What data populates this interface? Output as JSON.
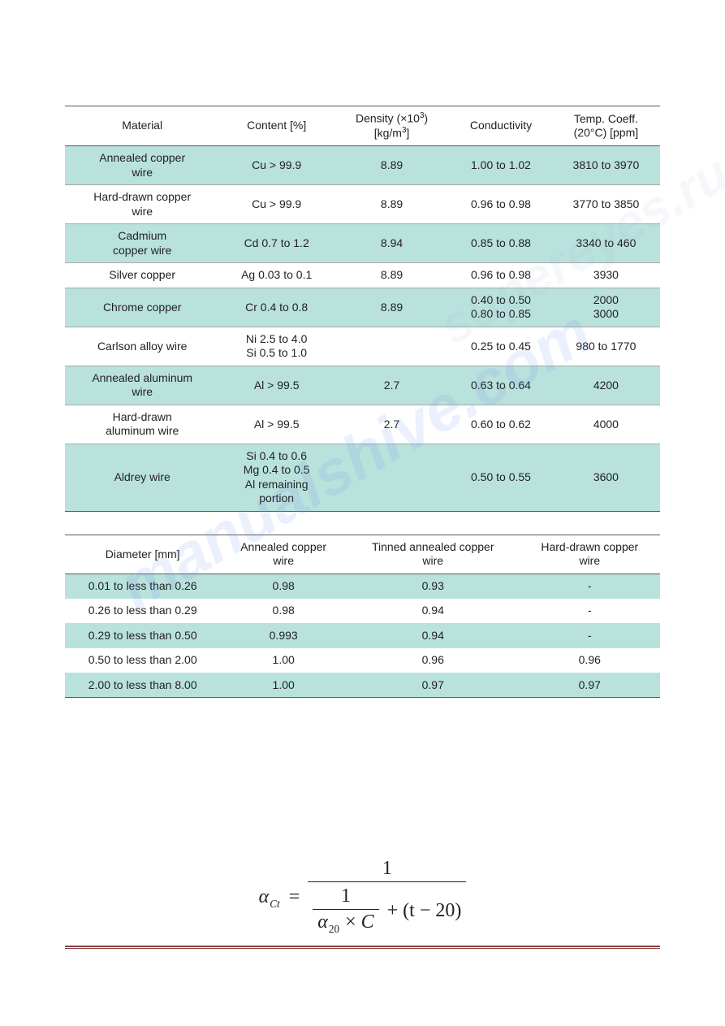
{
  "colors": {
    "stripe_bg": "#b9e2dd",
    "plain_bg": "#ffffff",
    "header_border": "#5a5a5a",
    "row_border": "#a7a8a9",
    "footer_rule": "#7d2b2c",
    "text": "#222222",
    "watermark1": "#6f8ff2",
    "watermark2": "#9fb3d6"
  },
  "typography": {
    "body_font": "Arial",
    "body_size_pt": 10,
    "formula_font": "Times New Roman",
    "formula_size_pt": 18
  },
  "table1": {
    "type": "table",
    "columns": [
      {
        "label": "Material"
      },
      {
        "label": "Content [%]"
      },
      {
        "label_html": "Density (×10<span class='sup'>3</span>)<br>[kg/m<span class='sup'>3</span>]"
      },
      {
        "label": "Conductivity"
      },
      {
        "label_html": "Temp. Coeff.<br>(20°C) [ppm]"
      }
    ],
    "rows": [
      {
        "stripe": true,
        "cells": [
          "Annealed copper\nwire",
          "Cu > 99.9",
          "8.89",
          "1.00 to 1.02",
          "3810 to 3970"
        ]
      },
      {
        "stripe": false,
        "cells": [
          "Hard-drawn copper\nwire",
          "Cu > 99.9",
          "8.89",
          "0.96 to 0.98",
          "3770 to 3850"
        ]
      },
      {
        "stripe": true,
        "cells": [
          "Cadmium\ncopper wire",
          "Cd 0.7 to 1.2",
          "8.94",
          "0.85 to 0.88",
          "3340 to 460"
        ]
      },
      {
        "stripe": false,
        "cells": [
          "Silver copper",
          "Ag 0.03 to 0.1",
          "8.89",
          "0.96 to 0.98",
          "3930"
        ]
      },
      {
        "stripe": true,
        "cells": [
          "Chrome copper",
          "Cr 0.4 to 0.8",
          "8.89",
          "0.40 to 0.50\n0.80 to 0.85",
          "2000\n3000"
        ]
      },
      {
        "stripe": false,
        "cells": [
          "Carlson alloy wire",
          "Ni 2.5 to 4.0\nSi 0.5 to 1.0",
          "",
          "0.25 to 0.45",
          "980 to 1770"
        ]
      },
      {
        "stripe": true,
        "cells": [
          "Annealed aluminum\nwire",
          "Al > 99.5",
          "2.7",
          "0.63 to 0.64",
          "4200"
        ]
      },
      {
        "stripe": false,
        "cells": [
          "Hard-drawn\naluminum wire",
          "Al > 99.5",
          "2.7",
          "0.60 to 0.62",
          "4000"
        ]
      },
      {
        "stripe": true,
        "cells": [
          "Aldrey wire",
          "Si 0.4 to 0.6\nMg 0.4 to 0.5\nAl remaining\nportion",
          "",
          "0.50 to 0.55",
          "3600"
        ]
      }
    ]
  },
  "table2": {
    "type": "table",
    "columns": [
      {
        "label": "Diameter [mm]"
      },
      {
        "label_html": "Annealed copper<br>wire"
      },
      {
        "label_html": "Tinned annealed copper<br>wire"
      },
      {
        "label_html": "Hard-drawn copper<br>wire"
      }
    ],
    "rows": [
      {
        "stripe": true,
        "cells": [
          "0.01 to less than 0.26",
          "0.98",
          "0.93",
          "-"
        ]
      },
      {
        "stripe": false,
        "cells": [
          "0.26 to less than 0.29",
          "0.98",
          "0.94",
          "-"
        ]
      },
      {
        "stripe": true,
        "cells": [
          "0.29 to less than 0.50",
          "0.993",
          "0.94",
          "-"
        ]
      },
      {
        "stripe": false,
        "cells": [
          "0.50 to less than 2.00",
          "1.00",
          "0.96",
          "0.96"
        ]
      },
      {
        "stripe": true,
        "cells": [
          "2.00 to less than 8.00",
          "1.00",
          "0.97",
          "0.97"
        ]
      }
    ]
  },
  "formula": {
    "lhs_sym": "α",
    "lhs_sub": "Ct",
    "numerator": "1",
    "den_left_num": "1",
    "den_left_den_sym": "α",
    "den_left_den_sub": "20",
    "den_left_den_op": "×",
    "den_left_den_var": "C",
    "den_right": "+ (t − 20)"
  },
  "watermarks": {
    "wm1": "manualshive.com",
    "wm2": "supereyes.ru"
  }
}
